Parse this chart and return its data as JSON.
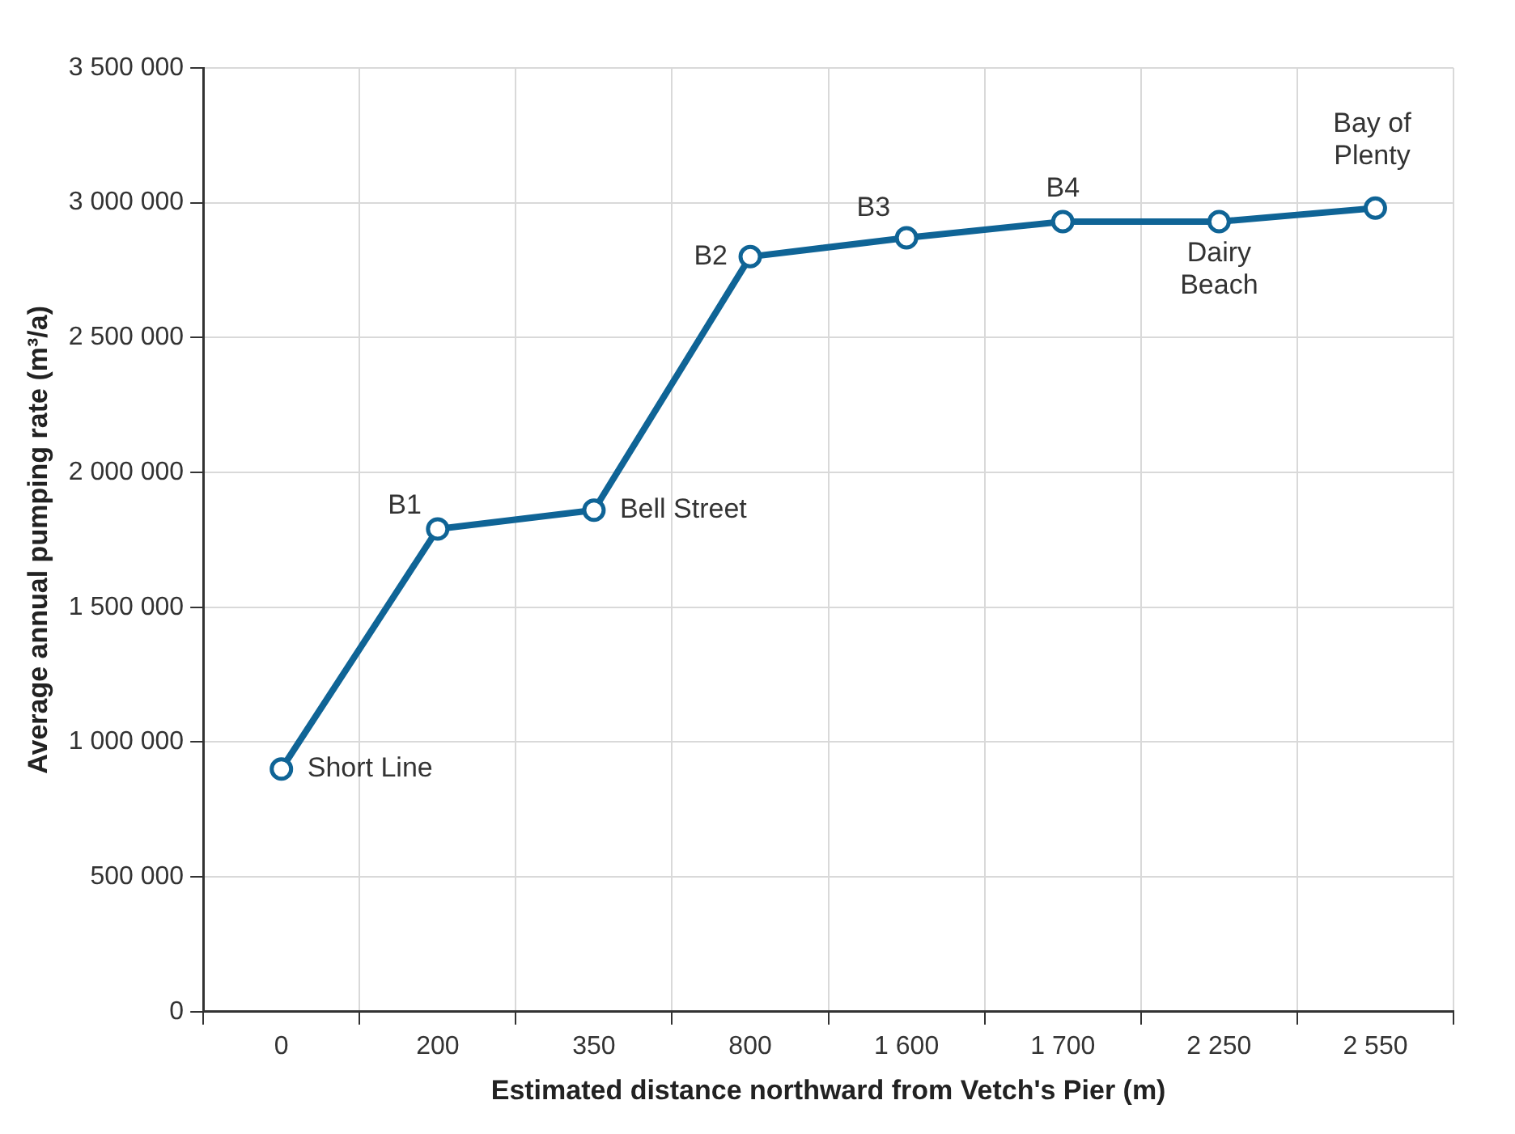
{
  "chart_data": {
    "type": "line",
    "xlabel": "Estimated distance northward from Vetch's Pier (m)",
    "ylabel": "Average annual pumping rate (m³/a)",
    "categories": [
      "0",
      "200",
      "350",
      "800",
      "1 600",
      "1 700",
      "2 250",
      "2 550"
    ],
    "series": [
      {
        "color": "#0f6496",
        "values": [
          900000,
          1790000,
          1860000,
          2800000,
          2870000,
          2930000,
          2930000,
          2980000
        ]
      }
    ],
    "ylim": [
      0,
      3500000
    ],
    "yticks": [
      0,
      {
        "value": 500000,
        "label": "500 000"
      },
      {
        "value": 1000000,
        "label": "1 000 000"
      },
      {
        "value": 1500000,
        "label": "1 500 000"
      },
      {
        "value": 2000000,
        "label": "2 000 000"
      },
      {
        "value": 2500000,
        "label": "2 500 000"
      },
      {
        "value": 3000000,
        "label": "3 000 000"
      },
      {
        "value": 3500000,
        "label": "3 500 000"
      }
    ],
    "grid": true,
    "legend": false,
    "marker": "circle",
    "line_style": "solid",
    "annotations": [
      {
        "text": "Short Line",
        "x": "0",
        "y": 900000
      },
      {
        "text": "B1",
        "x": "200",
        "y": 1790000
      },
      {
        "text": "Bell Street",
        "x": "350",
        "y": 1860000
      },
      {
        "text": "B2",
        "x": "800",
        "y": 2800000
      },
      {
        "text": "B3",
        "x": "1 600",
        "y": 2870000
      },
      {
        "text": "B4",
        "x": "1 700",
        "y": 2930000
      },
      {
        "text": "Dairy Beach",
        "x": "2 250",
        "y": 2930000
      },
      {
        "text": "Bay of Plenty",
        "x": "2 550",
        "y": 2980000
      }
    ]
  }
}
